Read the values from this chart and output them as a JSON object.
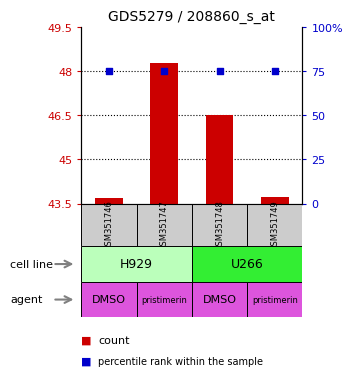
{
  "title": "GDS5279 / 208860_s_at",
  "samples": [
    "GSM351746",
    "GSM351747",
    "GSM351748",
    "GSM351749"
  ],
  "bar_values": [
    43.68,
    48.28,
    46.5,
    43.72
  ],
  "bar_bottom": 43.5,
  "percentile_values": [
    75,
    75,
    75,
    75
  ],
  "ylim_left": [
    43.5,
    49.5
  ],
  "ylim_right": [
    0,
    100
  ],
  "yticks_left": [
    43.5,
    45,
    46.5,
    48,
    49.5
  ],
  "ytick_labels_left": [
    "43.5",
    "45",
    "46.5",
    "48",
    "49.5"
  ],
  "yticks_right": [
    0,
    25,
    50,
    75,
    100
  ],
  "ytick_labels_right": [
    "0",
    "25",
    "50",
    "75",
    "100%"
  ],
  "hlines": [
    48,
    46.5,
    45
  ],
  "cell_lines": [
    {
      "label": "H929",
      "color": "#bbffbb",
      "start": 0,
      "end": 2
    },
    {
      "label": "U266",
      "color": "#33ee33",
      "start": 2,
      "end": 4
    }
  ],
  "agents": [
    {
      "label": "DMSO",
      "start": 0,
      "end": 1
    },
    {
      "label": "pristimerin",
      "start": 1,
      "end": 2
    },
    {
      "label": "DMSO",
      "start": 2,
      "end": 3
    },
    {
      "label": "pristimerin",
      "start": 3,
      "end": 4
    }
  ],
  "agent_color": "#dd55dd",
  "bar_color": "#cc0000",
  "dot_color": "#0000cc",
  "sample_box_color": "#cccccc",
  "left_label_color": "#cc0000",
  "right_label_color": "#0000cc",
  "legend_count_color": "#cc0000",
  "legend_percentile_color": "#0000cc"
}
